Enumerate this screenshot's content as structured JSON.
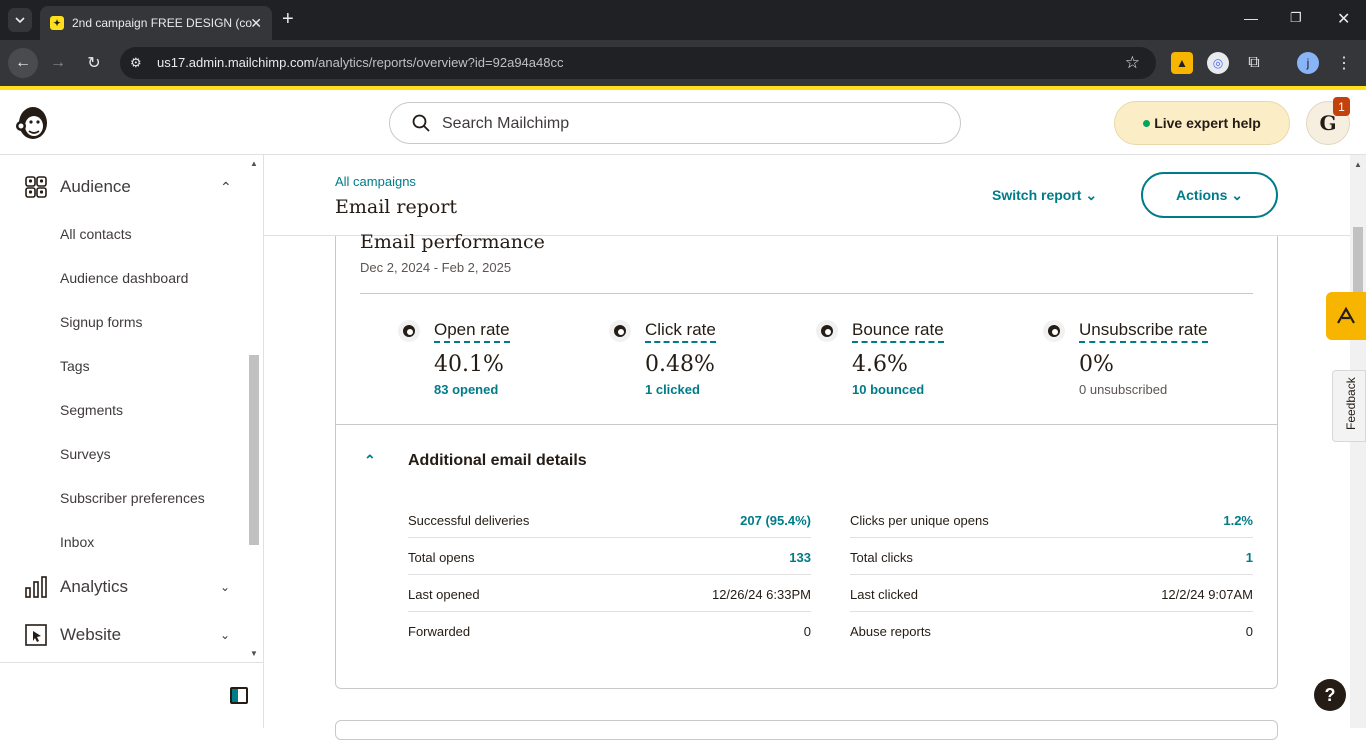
{
  "browser": {
    "tab_title": "2nd campaign FREE DESIGN (co",
    "url_host": "us17.admin.mailchimp.com",
    "url_path": "/analytics/reports/overview?id=92a94a48cc",
    "profile_initial": "j"
  },
  "header": {
    "search_placeholder": "Search Mailchimp",
    "live_help": "Live expert help",
    "avatar_initial": "G",
    "notification_count": "1"
  },
  "sidebar": {
    "audience_label": "Audience",
    "audience_items": [
      "All contacts",
      "Audience dashboard",
      "Signup forms",
      "Tags",
      "Segments",
      "Surveys",
      "Subscriber preferences",
      "Inbox"
    ],
    "analytics_label": "Analytics",
    "website_label": "Website"
  },
  "page": {
    "breadcrumb": "All campaigns",
    "title": "Email report",
    "switch_report": "Switch report",
    "actions": "Actions"
  },
  "performance": {
    "title": "Email performance",
    "dates": "Dec 2, 2024 - Feb 2, 2025",
    "stats": [
      {
        "label": "Open rate",
        "value": "40.1%",
        "sub": "83 opened"
      },
      {
        "label": "Click rate",
        "value": "0.48%",
        "sub": "1 clicked"
      },
      {
        "label": "Bounce rate",
        "value": "4.6%",
        "sub": "10 bounced"
      },
      {
        "label": "Unsubscribe rate",
        "value": "0%",
        "sub": "0 unsubscribed"
      }
    ]
  },
  "details": {
    "title": "Additional email details",
    "left": [
      {
        "label": "Successful deliveries",
        "value": "207 (95.4%)"
      },
      {
        "label": "Total opens",
        "value": "133"
      },
      {
        "label": "Last opened",
        "value": "12/26/24 6:33PM"
      },
      {
        "label": "Forwarded",
        "value": "0"
      }
    ],
    "right": [
      {
        "label": "Clicks per unique opens",
        "value": "1.2%"
      },
      {
        "label": "Total clicks",
        "value": "1"
      },
      {
        "label": "Last clicked",
        "value": "12/2/24 9:07AM"
      },
      {
        "label": "Abuse reports",
        "value": "0"
      }
    ]
  },
  "feedback_label": "Feedback",
  "help_label": "?",
  "colors": {
    "accent": "#007c89",
    "brand_yellow": "#ffe01b",
    "text": "#241c15"
  }
}
